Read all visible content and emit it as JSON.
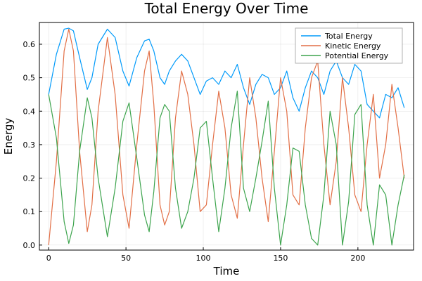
{
  "chart_data": {
    "type": "line",
    "title": "Total Energy Over Time",
    "xlabel": "Time",
    "ylabel": "Energy",
    "xlim": [
      -6,
      236
    ],
    "ylim": [
      -0.015,
      0.665
    ],
    "xticks": [
      0,
      50,
      100,
      150,
      200
    ],
    "xtick_labels": [
      "0",
      "50",
      "100",
      "150",
      "200"
    ],
    "yticks": [
      0.0,
      0.1,
      0.2,
      0.3,
      0.4,
      0.5,
      0.6
    ],
    "ytick_labels": [
      "0.0",
      "0.1",
      "0.2",
      "0.3",
      "0.4",
      "0.5",
      "0.6"
    ],
    "grid": true,
    "legend_position": "top-right",
    "x": [
      0,
      5,
      10,
      13,
      16,
      20,
      25,
      28,
      32,
      38,
      43,
      48,
      52,
      57,
      62,
      65,
      68,
      72,
      75,
      78,
      82,
      86,
      90,
      94,
      98,
      102,
      106,
      110,
      114,
      118,
      122,
      126,
      130,
      134,
      138,
      142,
      146,
      150,
      154,
      158,
      162,
      166,
      170,
      174,
      178,
      182,
      186,
      190,
      194,
      198,
      202,
      206,
      210,
      214,
      218,
      222,
      226,
      230
    ],
    "series": [
      {
        "name": "Total Energy",
        "color": "#009AFA",
        "values": [
          0.45,
          0.57,
          0.645,
          0.648,
          0.64,
          0.56,
          0.465,
          0.5,
          0.6,
          0.645,
          0.62,
          0.52,
          0.475,
          0.56,
          0.61,
          0.615,
          0.58,
          0.5,
          0.48,
          0.52,
          0.55,
          0.57,
          0.55,
          0.5,
          0.45,
          0.49,
          0.5,
          0.48,
          0.52,
          0.5,
          0.54,
          0.47,
          0.42,
          0.48,
          0.51,
          0.5,
          0.45,
          0.47,
          0.52,
          0.44,
          0.4,
          0.47,
          0.52,
          0.5,
          0.45,
          0.52,
          0.55,
          0.5,
          0.48,
          0.54,
          0.52,
          0.42,
          0.4,
          0.38,
          0.45,
          0.44,
          0.47,
          0.41
        ]
      },
      {
        "name": "Kinetic Energy",
        "color": "#E26F46",
        "values": [
          0.0,
          0.25,
          0.58,
          0.645,
          0.58,
          0.28,
          0.04,
          0.12,
          0.4,
          0.62,
          0.45,
          0.15,
          0.05,
          0.3,
          0.52,
          0.58,
          0.42,
          0.12,
          0.06,
          0.1,
          0.38,
          0.52,
          0.45,
          0.3,
          0.1,
          0.12,
          0.3,
          0.46,
          0.35,
          0.15,
          0.08,
          0.3,
          0.5,
          0.38,
          0.2,
          0.07,
          0.28,
          0.5,
          0.4,
          0.15,
          0.12,
          0.35,
          0.5,
          0.55,
          0.3,
          0.12,
          0.25,
          0.5,
          0.35,
          0.15,
          0.1,
          0.3,
          0.45,
          0.2,
          0.3,
          0.48,
          0.35,
          0.2
        ]
      },
      {
        "name": "Potential Energy",
        "color": "#3DA44D",
        "values": [
          0.45,
          0.32,
          0.07,
          0.005,
          0.06,
          0.28,
          0.44,
          0.38,
          0.2,
          0.025,
          0.17,
          0.37,
          0.425,
          0.26,
          0.09,
          0.04,
          0.16,
          0.38,
          0.42,
          0.4,
          0.17,
          0.05,
          0.1,
          0.2,
          0.35,
          0.37,
          0.2,
          0.04,
          0.17,
          0.35,
          0.46,
          0.17,
          0.1,
          0.2,
          0.31,
          0.43,
          0.17,
          0.0,
          0.12,
          0.29,
          0.28,
          0.12,
          0.02,
          0.0,
          0.15,
          0.4,
          0.3,
          0.0,
          0.13,
          0.39,
          0.42,
          0.12,
          0.0,
          0.18,
          0.15,
          0.0,
          0.12,
          0.21
        ]
      }
    ]
  }
}
